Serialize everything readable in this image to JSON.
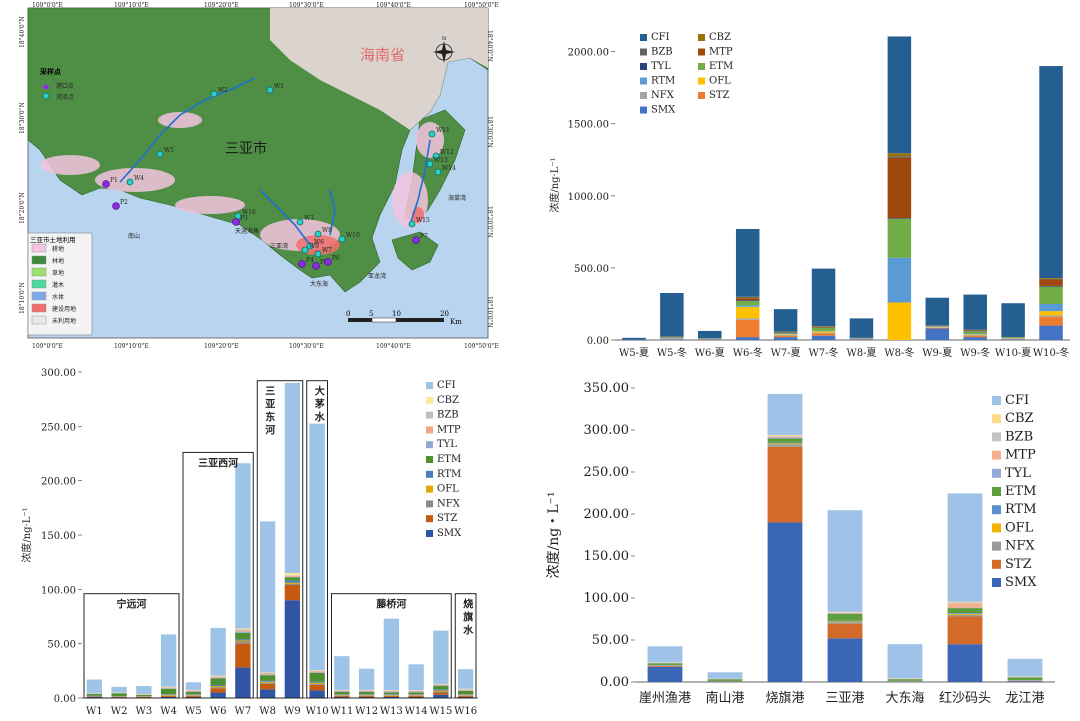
{
  "map": {
    "province_label": "海南省",
    "city_label": "三亚市",
    "lon_ticks": [
      "109°0'0\"E",
      "109°10'0\"E",
      "109°20'0\"E",
      "109°30'0\"E",
      "109°40'0\"E",
      "109°50'0\"E"
    ],
    "lat_ticks": [
      "18°40'0\"N",
      "18°30'0\"N",
      "18°20'0\"N",
      "18°10'0\"N"
    ],
    "sampling_legend": {
      "title": "采样点",
      "items": [
        "港口点",
        "河流点"
      ]
    },
    "landuse_legend": {
      "title": "三亚市土地利用",
      "items": [
        {
          "label": "耕地",
          "color": "#f4c4e0"
        },
        {
          "label": "林地",
          "color": "#3f8a3a"
        },
        {
          "label": "草地",
          "color": "#9ee06a"
        },
        {
          "label": "灌木",
          "color": "#4fd9a0"
        },
        {
          "label": "水体",
          "color": "#7fa8e8"
        },
        {
          "label": "建设用地",
          "color": "#f07070"
        },
        {
          "label": "未利用地",
          "color": "#e8e8e8"
        }
      ]
    },
    "scalebar": {
      "labels": [
        "0",
        "5",
        "10",
        "20"
      ],
      "unit": "Km"
    },
    "place_labels": [
      "南山",
      "天涯海角",
      "三亚湾",
      "大东海",
      "亚龙湾",
      "海棠湾"
    ],
    "points": [
      "W1",
      "W2",
      "W3",
      "W4",
      "W5",
      "W6",
      "W7",
      "W8",
      "W9",
      "W10",
      "W11",
      "W12",
      "W13",
      "W14",
      "W15",
      "W16",
      "P1",
      "P2",
      "P3",
      "P4",
      "P5",
      "P6",
      "P7"
    ],
    "colors": {
      "sea": "#b9d4ef",
      "river": "#1f6fd6",
      "port": "#8a2be2",
      "river_point": "#2ad0c8"
    }
  },
  "chart_data": [
    {
      "id": "seasonal",
      "type": "bar",
      "stacked": true,
      "ylabel": "浓度/ng·L⁻¹",
      "ylim": [
        0,
        2150
      ],
      "yticks": [
        "0.00",
        "500.00",
        "1000.00",
        "1500.00",
        "2000.00"
      ],
      "categories": [
        "W5-夏",
        "W5-冬",
        "W6-夏",
        "W6-冬",
        "W7-夏",
        "W7-冬",
        "W8-夏",
        "W8-冬",
        "W9-夏",
        "W9-冬",
        "W10-夏",
        "W10-冬"
      ],
      "legend_position": "top-left",
      "series": [
        {
          "name": "SMX",
          "color": "#4472c4",
          "values": [
            2,
            5,
            3,
            20,
            20,
            30,
            5,
            0,
            80,
            20,
            5,
            100
          ]
        },
        {
          "name": "STZ",
          "color": "#ed7d31",
          "values": [
            0,
            3,
            2,
            120,
            10,
            15,
            3,
            0,
            5,
            10,
            3,
            60
          ]
        },
        {
          "name": "NFX",
          "color": "#a5a5a5",
          "values": [
            0,
            2,
            1,
            10,
            5,
            5,
            1,
            0,
            3,
            5,
            1,
            10
          ]
        },
        {
          "name": "OFL",
          "color": "#ffc000",
          "values": [
            0,
            1,
            0,
            80,
            5,
            10,
            0,
            260,
            3,
            5,
            1,
            30
          ]
        },
        {
          "name": "RTM",
          "color": "#5b9bd5",
          "values": [
            1,
            3,
            2,
            10,
            5,
            5,
            2,
            310,
            3,
            5,
            2,
            50
          ]
        },
        {
          "name": "ETM",
          "color": "#70ad47",
          "values": [
            0,
            5,
            2,
            30,
            5,
            20,
            1,
            270,
            2,
            15,
            5,
            120
          ]
        },
        {
          "name": "TYL",
          "color": "#264478",
          "values": [
            0,
            1,
            1,
            5,
            2,
            2,
            1,
            5,
            1,
            2,
            1,
            5
          ]
        },
        {
          "name": "MTP",
          "color": "#9e480e",
          "values": [
            0,
            2,
            1,
            15,
            3,
            5,
            1,
            420,
            2,
            5,
            1,
            45
          ]
        },
        {
          "name": "BZB",
          "color": "#636363",
          "values": [
            0,
            1,
            1,
            5,
            2,
            2,
            1,
            10,
            1,
            2,
            1,
            5
          ]
        },
        {
          "name": "CBZ",
          "color": "#997300",
          "values": [
            0,
            1,
            0,
            5,
            2,
            3,
            0,
            20,
            1,
            2,
            1,
            5
          ]
        },
        {
          "name": "CFI",
          "color": "#255e91",
          "values": [
            12,
            302,
            50,
            470,
            155,
            398,
            135,
            810,
            192,
            244,
            234,
            1470
          ]
        }
      ]
    },
    {
      "id": "rivers",
      "type": "bar",
      "stacked": true,
      "ylabel": "浓度/ng·L⁻¹",
      "ylim": [
        0,
        300
      ],
      "yticks": [
        "0.00",
        "50.00",
        "100.00",
        "150.00",
        "200.00",
        "250.00",
        "300.00"
      ],
      "categories": [
        "W1",
        "W2",
        "W3",
        "W4",
        "W5",
        "W6",
        "W7",
        "W8",
        "W9",
        "W10",
        "W11",
        "W12",
        "W13",
        "W14",
        "W15",
        "W16"
      ],
      "legend_position": "right",
      "groups": [
        {
          "label": "宁远河",
          "from": 0,
          "to": 3,
          "top": 96
        },
        {
          "label": "三亚西河",
          "from": 4,
          "to": 6,
          "top": 226
        },
        {
          "label": "三亚东河",
          "from": 7,
          "to": 8,
          "top": 292
        },
        {
          "label": "大茅水",
          "from": 9,
          "to": 9,
          "top": 292
        },
        {
          "label": "藤桥河",
          "from": 10,
          "to": 14,
          "top": 96
        },
        {
          "label": "烧旗水",
          "from": 15,
          "to": 15,
          "top": 96
        }
      ],
      "series": [
        {
          "name": "SMX",
          "color": "#2f55a4",
          "values": [
            1,
            0.5,
            0.5,
            1,
            1,
            5,
            28,
            8,
            90,
            7,
            1,
            1,
            1,
            1,
            3,
            1
          ]
        },
        {
          "name": "STZ",
          "color": "#c55a11",
          "values": [
            0.5,
            0.5,
            0.5,
            1,
            1,
            4,
            22,
            5,
            14,
            5,
            1,
            1,
            1,
            1,
            2,
            1
          ]
        },
        {
          "name": "NFX",
          "color": "#8c8c8c",
          "values": [
            0.3,
            0.3,
            0.3,
            0.5,
            0.5,
            1,
            2,
            1,
            1,
            1,
            0.5,
            0.5,
            0.5,
            0.5,
            1,
            0.5
          ]
        },
        {
          "name": "OFL",
          "color": "#e0a800",
          "values": [
            0.2,
            0.2,
            0.2,
            0.5,
            0.5,
            1,
            1,
            1,
            1,
            1,
            0.5,
            0.5,
            0.5,
            0.5,
            1,
            0.5
          ]
        },
        {
          "name": "RTM",
          "color": "#4a7ebb",
          "values": [
            0.3,
            0.3,
            0.3,
            0.5,
            0.5,
            1,
            1,
            1,
            2,
            1,
            0.5,
            0.5,
            0.5,
            0.5,
            1,
            0.5
          ]
        },
        {
          "name": "ETM",
          "color": "#4e8f32",
          "values": [
            1.5,
            2.5,
            1,
            5,
            2,
            6,
            6,
            5,
            3,
            8,
            2,
            2,
            1.5,
            1.5,
            3,
            3
          ]
        },
        {
          "name": "TYL",
          "color": "#8fa8d6",
          "values": [
            0.2,
            0.2,
            0.2,
            0.5,
            0.5,
            0.5,
            1,
            0.5,
            0.5,
            0.5,
            0.5,
            0.5,
            0.5,
            0.5,
            0.5,
            0.5
          ]
        },
        {
          "name": "MTP",
          "color": "#f4a582",
          "values": [
            0.2,
            0.2,
            0.2,
            0.5,
            0.5,
            1,
            1,
            1,
            1,
            1,
            0.5,
            0.5,
            0.5,
            0.5,
            0.5,
            0.5
          ]
        },
        {
          "name": "BZB",
          "color": "#bfbfbf",
          "values": [
            0.3,
            0.3,
            0.3,
            0.5,
            0.5,
            0.5,
            1,
            0.5,
            0.5,
            0.5,
            0.5,
            0.5,
            0.5,
            0.5,
            0.5,
            0.5
          ]
        },
        {
          "name": "CBZ",
          "color": "#ffe699",
          "values": [
            0.2,
            0.2,
            0.2,
            0.5,
            0.5,
            0.5,
            1,
            0.5,
            2,
            0.5,
            0.5,
            0.5,
            0.5,
            0.5,
            0.5,
            0.5
          ]
        },
        {
          "name": "CFI",
          "color": "#9dc3e6",
          "values": [
            12.3,
            5,
            7.3,
            48,
            7,
            44,
            152,
            139,
            175,
            227,
            31,
            19.5,
            66,
            24,
            49,
            18
          ]
        }
      ]
    },
    {
      "id": "ports",
      "type": "bar",
      "stacked": true,
      "ylabel": "浓度/ng・L⁻¹",
      "ylim": [
        0,
        350
      ],
      "yticks": [
        "0.00",
        "50.00",
        "100.00",
        "150.00",
        "200.00",
        "250.00",
        "300.00",
        "350.00"
      ],
      "categories": [
        "崖州渔港",
        "南山港",
        "烧旗港",
        "三亚港",
        "大东海",
        "红沙码头",
        "龙江港"
      ],
      "legend_position": "right",
      "series": [
        {
          "name": "SMX",
          "color": "#3a66b5",
          "values": [
            18,
            0.5,
            190,
            52,
            0.5,
            45,
            1
          ]
        },
        {
          "name": "STZ",
          "color": "#d46a29",
          "values": [
            1,
            0.2,
            90,
            17,
            0.2,
            33,
            0.5
          ]
        },
        {
          "name": "NFX",
          "color": "#9a9a9a",
          "values": [
            0.5,
            0.2,
            3,
            2,
            0.2,
            2,
            0.3
          ]
        },
        {
          "name": "OFL",
          "color": "#f0b400",
          "values": [
            0.3,
            0.2,
            1,
            1,
            0.2,
            1,
            0.3
          ]
        },
        {
          "name": "RTM",
          "color": "#5a8fcf",
          "values": [
            0.5,
            0.2,
            1,
            1,
            0.3,
            1,
            0.3
          ]
        },
        {
          "name": "ETM",
          "color": "#5c9e3c",
          "values": [
            2,
            2,
            5,
            8,
            2,
            6,
            3
          ]
        },
        {
          "name": "TYL",
          "color": "#94a9d9",
          "values": [
            0.3,
            0.2,
            1,
            0.5,
            0.3,
            0.5,
            0.3
          ]
        },
        {
          "name": "MTP",
          "color": "#f5b090",
          "values": [
            0.3,
            0.2,
            1,
            1,
            0.3,
            5,
            0.3
          ]
        },
        {
          "name": "BZB",
          "color": "#c4c4c4",
          "values": [
            0.3,
            0.2,
            1,
            0.5,
            0.3,
            1,
            0.3
          ]
        },
        {
          "name": "CBZ",
          "color": "#ffd98a",
          "values": [
            0.3,
            0.2,
            1,
            0.5,
            0.3,
            1,
            0.3
          ]
        },
        {
          "name": "CFI",
          "color": "#9fc2e8",
          "values": [
            19,
            7.5,
            49,
            121,
            40.5,
            129,
            21
          ]
        }
      ]
    }
  ]
}
